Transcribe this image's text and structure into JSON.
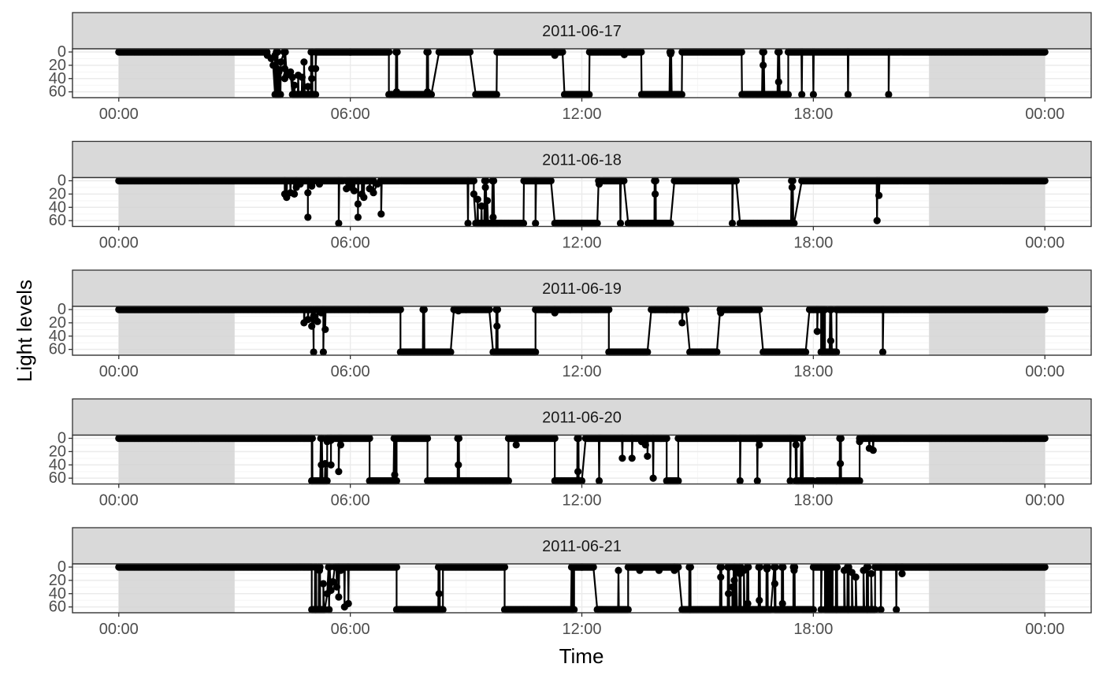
{
  "chart_data": {
    "type": "line",
    "xlabel": "Time",
    "ylabel": "Light levels",
    "x_tick_labels": [
      "00:00",
      "06:00",
      "12:00",
      "18:00",
      "00:00"
    ],
    "x_tick_hours": [
      0,
      6,
      12,
      18,
      24
    ],
    "x_range_hours": [
      -1.2,
      25.2
    ],
    "y_tick_labels": [
      "0",
      "20",
      "40",
      "60"
    ],
    "y_ticks": [
      0,
      20,
      40,
      60
    ],
    "y_range": [
      0,
      64
    ],
    "y_reversed": true,
    "grid": true,
    "shaded_night_hours": [
      [
        0,
        3
      ],
      [
        21,
        24
      ]
    ],
    "colors": {
      "points": "#000000",
      "line": "#000000",
      "shade": "#d3d3d3",
      "strip_fill": "#d9d9d9",
      "panel_border": "#333333",
      "grid_major": "#ebebeb",
      "grid_minor": "#f5f5f5"
    },
    "panels": [
      {
        "date": "2011-06-17",
        "flat_runs": [
          [
            0,
            3.85,
            0
          ],
          [
            4.05,
            4.2,
            64
          ],
          [
            4.5,
            5.1,
            64
          ],
          [
            5.1,
            7.0,
            0
          ],
          [
            7.0,
            8.1,
            64
          ],
          [
            8.3,
            9.1,
            0
          ],
          [
            9.25,
            9.8,
            64
          ],
          [
            9.8,
            11.5,
            0
          ],
          [
            11.55,
            12.2,
            64
          ],
          [
            12.2,
            13.55,
            0
          ],
          [
            13.55,
            14.6,
            64
          ],
          [
            14.6,
            16.15,
            0
          ],
          [
            16.15,
            17.35,
            64
          ],
          [
            17.35,
            21,
            0
          ],
          [
            21,
            24,
            0
          ]
        ],
        "spikes": [
          [
            4.1,
            30
          ],
          [
            4.3,
            40
          ],
          [
            5.0,
            25
          ],
          [
            6.0,
            0
          ],
          [
            7.2,
            60
          ],
          [
            8.0,
            60
          ],
          [
            11.3,
            5
          ],
          [
            13.1,
            4
          ],
          [
            14.3,
            3
          ],
          [
            16.7,
            20
          ],
          [
            17.1,
            45
          ],
          [
            17.7,
            64
          ],
          [
            18.0,
            64
          ],
          [
            18.9,
            64
          ],
          [
            19.95,
            64
          ]
        ],
        "scatter": [
          [
            3.85,
            5
          ],
          [
            3.95,
            10
          ],
          [
            4.0,
            20
          ],
          [
            4.05,
            5
          ],
          [
            4.1,
            25
          ],
          [
            4.15,
            30
          ],
          [
            4.2,
            15
          ],
          [
            4.3,
            25
          ],
          [
            4.35,
            35
          ],
          [
            4.45,
            30
          ],
          [
            4.5,
            38
          ],
          [
            4.55,
            50
          ],
          [
            4.65,
            35
          ],
          [
            4.75,
            38
          ],
          [
            4.8,
            15
          ],
          [
            4.9,
            52
          ],
          [
            5.0,
            40
          ],
          [
            5.1,
            25
          ]
        ]
      },
      {
        "date": "2011-06-18",
        "flat_runs": [
          [
            0,
            4.3,
            0
          ],
          [
            4.3,
            5.8,
            0
          ],
          [
            5.9,
            6.6,
            0
          ],
          [
            6.8,
            9.2,
            0
          ],
          [
            9.25,
            10.5,
            64
          ],
          [
            10.5,
            11.2,
            0
          ],
          [
            11.3,
            12.4,
            64
          ],
          [
            12.55,
            13.1,
            0
          ],
          [
            13.2,
            14.3,
            64
          ],
          [
            14.4,
            16.0,
            0
          ],
          [
            16.1,
            17.5,
            64
          ],
          [
            17.7,
            21,
            0
          ],
          [
            21,
            24,
            0
          ]
        ],
        "spikes": [
          [
            4.3,
            20
          ],
          [
            4.6,
            10
          ],
          [
            4.9,
            55
          ],
          [
            5.7,
            64
          ],
          [
            6.0,
            10
          ],
          [
            6.2,
            55
          ],
          [
            6.8,
            50
          ],
          [
            9.05,
            64
          ],
          [
            9.5,
            10
          ],
          [
            9.7,
            55
          ],
          [
            10.8,
            64
          ],
          [
            12.45,
            5
          ],
          [
            13.0,
            64
          ],
          [
            13.9,
            20
          ],
          [
            15.9,
            64
          ],
          [
            17.45,
            10
          ],
          [
            19.65,
            60
          ],
          [
            19.7,
            22
          ]
        ],
        "scatter": [
          [
            4.35,
            25
          ],
          [
            4.45,
            18
          ],
          [
            4.55,
            20
          ],
          [
            4.7,
            5
          ],
          [
            4.9,
            18
          ],
          [
            5.0,
            8
          ],
          [
            5.2,
            5
          ],
          [
            5.9,
            12
          ],
          [
            6.0,
            8
          ],
          [
            6.1,
            15
          ],
          [
            6.2,
            35
          ],
          [
            6.3,
            20
          ],
          [
            6.35,
            25
          ],
          [
            6.5,
            12
          ],
          [
            6.6,
            18
          ],
          [
            6.7,
            5
          ],
          [
            9.2,
            20
          ],
          [
            9.3,
            28
          ],
          [
            9.4,
            38
          ],
          [
            9.55,
            30
          ]
        ]
      },
      {
        "date": "2011-06-19",
        "flat_runs": [
          [
            0,
            5.0,
            0
          ],
          [
            5.1,
            7.3,
            0
          ],
          [
            7.3,
            8.6,
            64
          ],
          [
            8.7,
            9.6,
            0
          ],
          [
            9.7,
            10.8,
            64
          ],
          [
            10.8,
            12.7,
            0
          ],
          [
            12.7,
            13.7,
            64
          ],
          [
            13.8,
            14.7,
            0
          ],
          [
            14.8,
            15.5,
            64
          ],
          [
            15.6,
            16.6,
            0
          ],
          [
            16.7,
            17.8,
            64
          ],
          [
            17.9,
            18.3,
            0
          ],
          [
            18.2,
            18.6,
            64
          ],
          [
            18.6,
            21,
            0
          ],
          [
            21,
            24,
            0
          ]
        ],
        "spikes": [
          [
            5.05,
            64
          ],
          [
            5.3,
            64
          ],
          [
            7.9,
            0
          ],
          [
            8.7,
            0
          ],
          [
            9.8,
            25
          ],
          [
            11.3,
            5
          ],
          [
            14.6,
            20
          ],
          [
            15.6,
            5
          ],
          [
            18.1,
            33
          ],
          [
            18.45,
            47
          ],
          [
            19.8,
            64
          ]
        ],
        "scatter": [
          [
            4.8,
            20
          ],
          [
            4.9,
            15
          ],
          [
            5.0,
            25
          ],
          [
            5.05,
            10
          ],
          [
            5.15,
            18
          ],
          [
            5.25,
            5
          ],
          [
            5.35,
            30
          ],
          [
            6.2,
            0
          ],
          [
            6.5,
            0
          ],
          [
            8.8,
            2
          ],
          [
            9.0,
            0
          ],
          [
            11.1,
            0
          ],
          [
            11.7,
            0
          ],
          [
            12.0,
            0
          ],
          [
            13.9,
            0
          ],
          [
            14.2,
            0
          ],
          [
            14.4,
            0
          ]
        ]
      },
      {
        "date": "2011-06-20",
        "flat_runs": [
          [
            0,
            5.0,
            0
          ],
          [
            5.0,
            5.4,
            64
          ],
          [
            5.4,
            6.5,
            0
          ],
          [
            6.5,
            7.2,
            64
          ],
          [
            7.2,
            8.0,
            0
          ],
          [
            8.0,
            10.1,
            64
          ],
          [
            10.1,
            11.3,
            0
          ],
          [
            11.3,
            12.0,
            64
          ],
          [
            12.1,
            14.2,
            0
          ],
          [
            14.2,
            14.5,
            64
          ],
          [
            14.5,
            16.0,
            0
          ],
          [
            16.1,
            17.5,
            0
          ],
          [
            17.55,
            18.0,
            64
          ],
          [
            18.1,
            18.6,
            64
          ],
          [
            18.6,
            19.2,
            64
          ],
          [
            19.2,
            21,
            0
          ],
          [
            21,
            24,
            0
          ]
        ],
        "spikes": [
          [
            5.0,
            64
          ],
          [
            5.25,
            40
          ],
          [
            5.5,
            40
          ],
          [
            5.7,
            50
          ],
          [
            5.75,
            10
          ],
          [
            7.15,
            55
          ],
          [
            8.8,
            40
          ],
          [
            10.3,
            10
          ],
          [
            11.9,
            50
          ],
          [
            12.45,
            64
          ],
          [
            13.05,
            30
          ],
          [
            13.3,
            30
          ],
          [
            13.7,
            27
          ],
          [
            13.85,
            60
          ],
          [
            16.1,
            64
          ],
          [
            16.55,
            64
          ],
          [
            16.6,
            10
          ],
          [
            17.4,
            64
          ],
          [
            17.55,
            10
          ],
          [
            17.7,
            64
          ],
          [
            18.7,
            38
          ],
          [
            19.45,
            15
          ],
          [
            19.55,
            18
          ]
        ],
        "scatter": [
          [
            5.35,
            38
          ],
          [
            5.4,
            5
          ],
          [
            5.5,
            3
          ],
          [
            13.55,
            5
          ],
          [
            13.65,
            10
          ],
          [
            14.05,
            0
          ],
          [
            19.2,
            5
          ]
        ]
      },
      {
        "date": "2011-06-21",
        "flat_runs": [
          [
            0,
            5.0,
            0
          ],
          [
            5.0,
            5.35,
            64
          ],
          [
            5.6,
            7.2,
            0
          ],
          [
            7.2,
            8.4,
            64
          ],
          [
            8.4,
            10.0,
            0
          ],
          [
            10.0,
            11.8,
            64
          ],
          [
            11.8,
            12.3,
            0
          ],
          [
            12.4,
            13.2,
            64
          ],
          [
            13.2,
            14.5,
            0
          ],
          [
            14.6,
            16.9,
            64
          ],
          [
            17.0,
            18.0,
            64
          ],
          [
            18.0,
            18.5,
            0
          ],
          [
            18.3,
            19.6,
            64
          ],
          [
            19.6,
            21,
            0
          ],
          [
            21,
            24,
            0
          ]
        ],
        "spikes": [
          [
            5.1,
            64
          ],
          [
            5.2,
            5
          ],
          [
            5.45,
            64
          ],
          [
            5.7,
            45
          ],
          [
            5.95,
            55
          ],
          [
            8.3,
            40
          ],
          [
            11.75,
            64
          ],
          [
            12.0,
            0
          ],
          [
            14.4,
            5
          ],
          [
            14.8,
            64
          ],
          [
            15.6,
            15
          ],
          [
            15.8,
            40
          ],
          [
            15.95,
            20
          ],
          [
            16.1,
            10
          ],
          [
            16.3,
            55
          ],
          [
            16.6,
            50
          ],
          [
            16.8,
            3
          ],
          [
            17.0,
            25
          ],
          [
            17.2,
            55
          ],
          [
            17.5,
            5
          ],
          [
            18.2,
            64
          ],
          [
            18.6,
            64
          ],
          [
            18.9,
            64
          ],
          [
            19.4,
            64
          ],
          [
            19.75,
            64
          ],
          [
            20.15,
            64
          ],
          [
            20.3,
            10
          ]
        ],
        "scatter": [
          [
            5.3,
            25
          ],
          [
            5.4,
            40
          ],
          [
            5.5,
            35
          ],
          [
            5.55,
            22
          ],
          [
            5.65,
            30
          ],
          [
            5.75,
            5
          ],
          [
            5.85,
            60
          ],
          [
            12.95,
            5
          ],
          [
            13.5,
            5
          ],
          [
            14.0,
            5
          ],
          [
            15.9,
            30
          ],
          [
            16.0,
            5
          ],
          [
            16.2,
            5
          ],
          [
            18.4,
            5
          ],
          [
            18.8,
            5
          ],
          [
            19.0,
            8
          ],
          [
            19.1,
            15
          ],
          [
            19.3,
            5
          ],
          [
            19.5,
            10
          ]
        ]
      }
    ]
  }
}
